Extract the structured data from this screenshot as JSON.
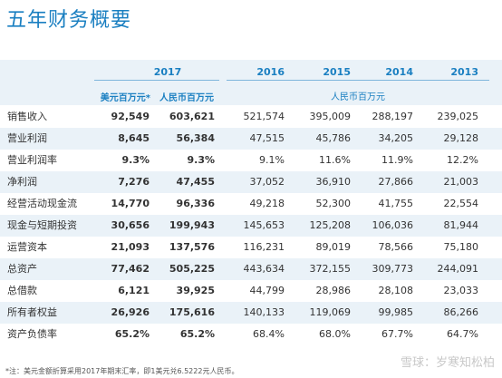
{
  "title": "五年财务概要",
  "header": {
    "years": [
      "2017",
      "2016",
      "2015",
      "2014",
      "2013"
    ],
    "unit_usd": "美元百万元*",
    "unit_rmb_2017": "人民币百万元",
    "unit_rmb_group": "人民币百万元"
  },
  "rows": [
    {
      "label": "销售收入",
      "usd": "92,549",
      "rmb": "603,621",
      "y2016": "521,574",
      "y2015": "395,009",
      "y2014": "288,197",
      "y2013": "239,025"
    },
    {
      "label": "营业利润",
      "usd": "8,645",
      "rmb": "56,384",
      "y2016": "47,515",
      "y2015": "45,786",
      "y2014": "34,205",
      "y2013": "29,128"
    },
    {
      "label": "营业利润率",
      "usd": "9.3%",
      "rmb": "9.3%",
      "y2016": "9.1%",
      "y2015": "11.6%",
      "y2014": "11.9%",
      "y2013": "12.2%"
    },
    {
      "label": "净利润",
      "usd": "7,276",
      "rmb": "47,455",
      "y2016": "37,052",
      "y2015": "36,910",
      "y2014": "27,866",
      "y2013": "21,003"
    },
    {
      "label": "经营活动现金流",
      "usd": "14,770",
      "rmb": "96,336",
      "y2016": "49,218",
      "y2015": "52,300",
      "y2014": "41,755",
      "y2013": "22,554"
    },
    {
      "label": "现金与短期投资",
      "usd": "30,656",
      "rmb": "199,943",
      "y2016": "145,653",
      "y2015": "125,208",
      "y2014": "106,036",
      "y2013": "81,944"
    },
    {
      "label": "运营资本",
      "usd": "21,093",
      "rmb": "137,576",
      "y2016": "116,231",
      "y2015": "89,019",
      "y2014": "78,566",
      "y2013": "75,180"
    },
    {
      "label": "总资产",
      "usd": "77,462",
      "rmb": "505,225",
      "y2016": "443,634",
      "y2015": "372,155",
      "y2014": "309,773",
      "y2013": "244,091"
    },
    {
      "label": "总借款",
      "usd": "6,121",
      "rmb": "39,925",
      "y2016": "44,799",
      "y2015": "28,986",
      "y2014": "28,108",
      "y2013": "23,033"
    },
    {
      "label": "所有者权益",
      "usd": "26,926",
      "rmb": "175,616",
      "y2016": "140,133",
      "y2015": "119,069",
      "y2014": "99,985",
      "y2013": "86,266"
    },
    {
      "label": "资产负债率",
      "usd": "65.2%",
      "rmb": "65.2%",
      "y2016": "68.4%",
      "y2015": "68.0%",
      "y2014": "67.7%",
      "y2013": "64.7%"
    }
  ],
  "footnote": "*注：美元金额折算采用2017年期末汇率，即1美元兑6.5222元人民币。",
  "watermark": "雪球：岁寒知松柏",
  "colors": {
    "accent": "#1a7fc1",
    "band": "#eaf2f8",
    "rule": "#7fb6dc"
  }
}
